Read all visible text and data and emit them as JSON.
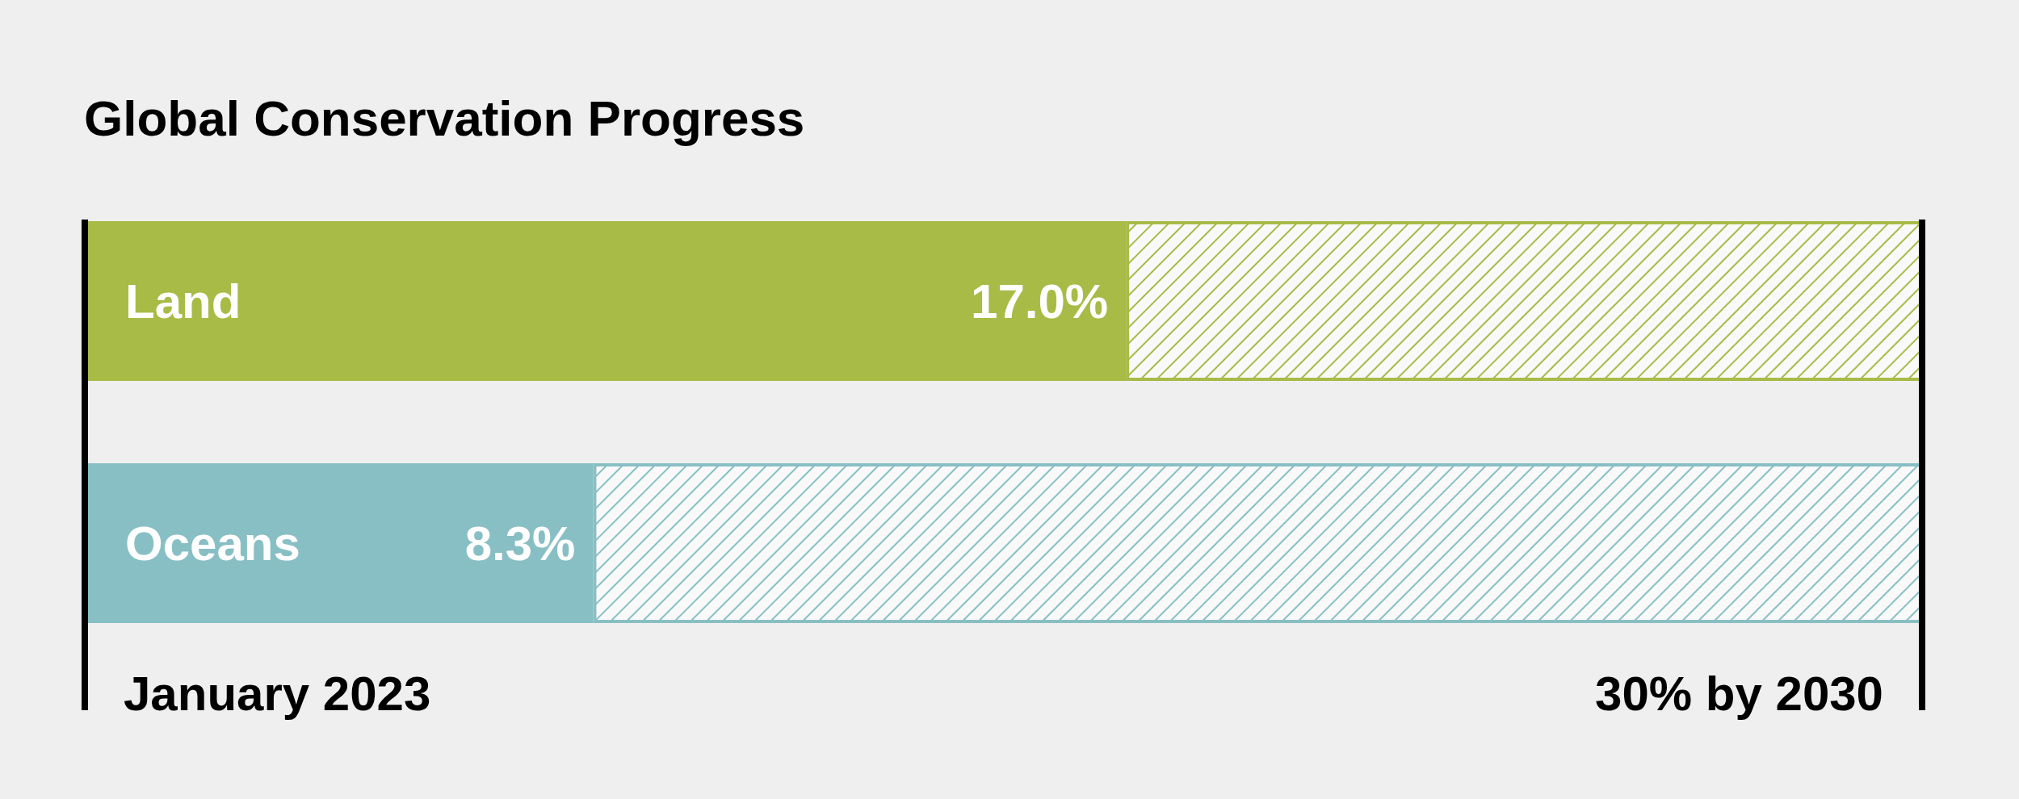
{
  "chart_data": {
    "type": "bar",
    "title": "Global Conservation Progress",
    "orientation": "horizontal",
    "stacked": true,
    "categories": [
      "Land",
      "Oceans"
    ],
    "xlim": [
      0,
      30
    ],
    "series": [
      {
        "values": [
          17.0,
          8.3
        ],
        "colors": [
          "#a8bb47",
          "#88bfc4"
        ],
        "value_labels": [
          "17.0%",
          "8.3%"
        ]
      },
      {
        "values": [
          13.0,
          21.7
        ],
        "colors": [
          "#a8bb47",
          "#88bfc4"
        ]
      }
    ],
    "annotations": [
      "January 2023"
    ],
    "ref_lines": [
      {
        "axis": "x",
        "value": 30,
        "label": "30% by 2030",
        "color": "#000000"
      }
    ]
  }
}
